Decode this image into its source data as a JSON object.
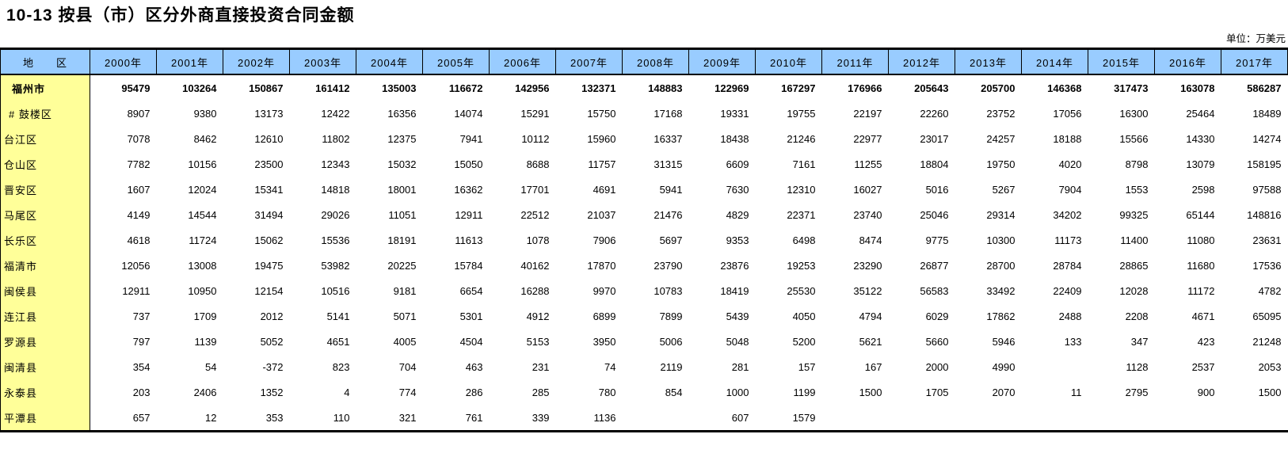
{
  "title": "10-13 按县（市）区分外商直接投资合同金额",
  "unit_label": "单位：万美元",
  "colors": {
    "header_bg": "#99CCFF",
    "region_column_bg": "#FFFF99",
    "border": "#000000",
    "background": "#FFFFFF"
  },
  "table": {
    "region_header": "地　　区",
    "year_columns": [
      "2000年",
      "2001年",
      "2002年",
      "2003年",
      "2004年",
      "2005年",
      "2006年",
      "2007年",
      "2008年",
      "2009年",
      "2010年",
      "2011年",
      "2012年",
      "2013年",
      "2014年",
      "2015年",
      "2016年",
      "2017年"
    ],
    "rows": [
      {
        "label": "福州市",
        "level": "total",
        "values": [
          95479,
          103264,
          150867,
          161412,
          135003,
          116672,
          142956,
          132371,
          148883,
          122969,
          167297,
          176966,
          205643,
          205700,
          146368,
          317473,
          163078,
          586287
        ]
      },
      {
        "label": "# 鼓楼区",
        "level": "ofwhich",
        "values": [
          8907,
          9380,
          13173,
          12422,
          16356,
          14074,
          15291,
          15750,
          17168,
          19331,
          19755,
          22197,
          22260,
          23752,
          17056,
          16300,
          25464,
          18489
        ]
      },
      {
        "label": "台江区",
        "level": "district",
        "values": [
          7078,
          8462,
          12610,
          11802,
          12375,
          7941,
          10112,
          15960,
          16337,
          18438,
          21246,
          22977,
          23017,
          24257,
          18188,
          15566,
          14330,
          14274
        ]
      },
      {
        "label": "仓山区",
        "level": "district",
        "values": [
          7782,
          10156,
          23500,
          12343,
          15032,
          15050,
          8688,
          11757,
          31315,
          6609,
          7161,
          11255,
          18804,
          19750,
          4020,
          8798,
          13079,
          158195
        ]
      },
      {
        "label": "晋安区",
        "level": "district",
        "values": [
          1607,
          12024,
          15341,
          14818,
          18001,
          16362,
          17701,
          4691,
          5941,
          7630,
          12310,
          16027,
          5016,
          5267,
          7904,
          1553,
          2598,
          97588
        ]
      },
      {
        "label": "马尾区",
        "level": "district",
        "values": [
          4149,
          14544,
          31494,
          29026,
          11051,
          12911,
          22512,
          21037,
          21476,
          4829,
          22371,
          23740,
          25046,
          29314,
          34202,
          99325,
          65144,
          148816
        ]
      },
      {
        "label": "长乐区",
        "level": "district",
        "values": [
          4618,
          11724,
          15062,
          15536,
          18191,
          11613,
          1078,
          7906,
          5697,
          9353,
          6498,
          8474,
          9775,
          10300,
          11173,
          11400,
          11080,
          23631
        ]
      },
      {
        "label": "福清市",
        "level": "district",
        "values": [
          12056,
          13008,
          19475,
          53982,
          20225,
          15784,
          40162,
          17870,
          23790,
          23876,
          19253,
          23290,
          26877,
          28700,
          28784,
          28865,
          11680,
          17536
        ]
      },
      {
        "label": "闽侯县",
        "level": "district",
        "values": [
          12911,
          10950,
          12154,
          10516,
          9181,
          6654,
          16288,
          9970,
          10783,
          18419,
          25530,
          35122,
          56583,
          33492,
          22409,
          12028,
          11172,
          4782
        ]
      },
      {
        "label": "连江县",
        "level": "district",
        "values": [
          737,
          1709,
          2012,
          5141,
          5071,
          5301,
          4912,
          6899,
          7899,
          5439,
          4050,
          4794,
          6029,
          17862,
          2488,
          2208,
          4671,
          65095
        ]
      },
      {
        "label": "罗源县",
        "level": "district",
        "values": [
          797,
          1139,
          5052,
          4651,
          4005,
          4504,
          5153,
          3950,
          5006,
          5048,
          5200,
          5621,
          5660,
          5946,
          133,
          347,
          423,
          21248
        ]
      },
      {
        "label": "闽清县",
        "level": "district",
        "values": [
          354,
          54,
          -372,
          823,
          704,
          463,
          231,
          74,
          2119,
          281,
          157,
          167,
          2000,
          4990,
          "",
          1128,
          2537,
          2053
        ]
      },
      {
        "label": "永泰县",
        "level": "district",
        "values": [
          203,
          2406,
          1352,
          4,
          774,
          286,
          285,
          780,
          854,
          1000,
          1199,
          1500,
          1705,
          2070,
          11,
          2795,
          900,
          1500
        ]
      },
      {
        "label": "平潭县",
        "level": "district",
        "values": [
          657,
          12,
          353,
          110,
          321,
          761,
          339,
          1136,
          "",
          607,
          1579,
          "",
          "",
          "",
          "",
          "",
          "",
          ""
        ]
      }
    ]
  }
}
